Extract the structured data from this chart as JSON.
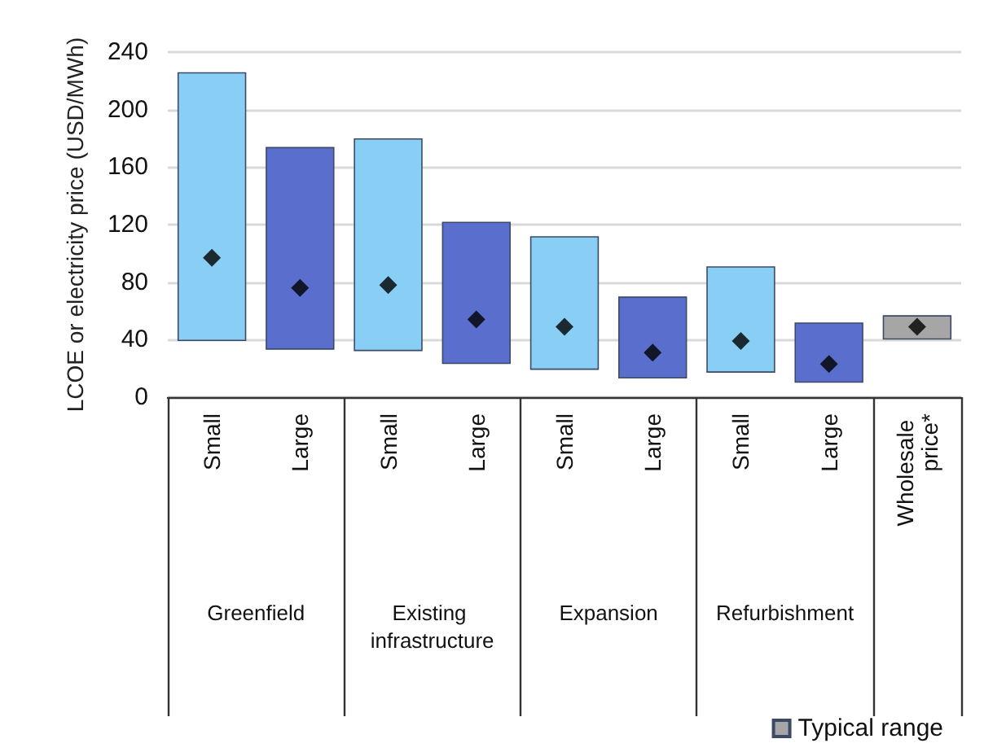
{
  "chart_data": {
    "type": "bar",
    "ylabel": "LCOE or electricity price (USD/MWh)",
    "categories": [
      "Small",
      "Large",
      "Small",
      "Large",
      "Small",
      "Large",
      "Small",
      "Large",
      "Wholesale price*"
    ],
    "series": [
      {
        "name": "Typical range",
        "color": "#a6a6a6",
        "colors": [
          "#89cff5",
          "#5a6fcd",
          "#89cff5",
          "#5a6fcd",
          "#89cff5",
          "#5a6fcd",
          "#89cff5",
          "#5a6fcd",
          "#a6a6a6"
        ],
        "base": [
          39,
          33,
          32,
          23,
          19,
          13,
          17,
          10,
          40
        ],
        "values": [
          187,
          141,
          148,
          99,
          93,
          57,
          74,
          42,
          17
        ]
      },
      {
        "type": "scatter",
        "color": "#000000",
        "marker": "diamond",
        "values": [
          97,
          76,
          78,
          54,
          49,
          31,
          39,
          23,
          49
        ]
      }
    ],
    "annotations": [
      "Greenfield",
      "Existing infrastructure",
      "Expansion",
      "Refurbishment"
    ],
    "ylim": [
      0,
      240
    ],
    "yticks": [
      0,
      40,
      80,
      120,
      160,
      200,
      240
    ],
    "grid": "y",
    "legend": "bottom right"
  }
}
